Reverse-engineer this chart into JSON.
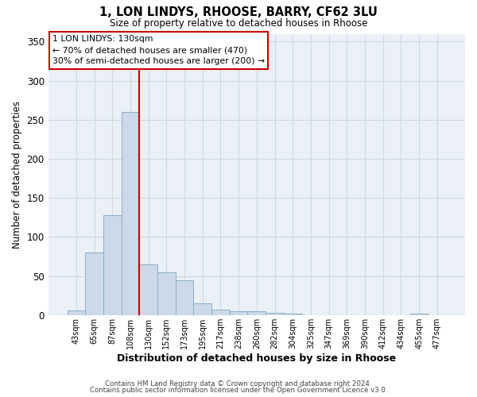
{
  "title": "1, LON LINDYS, RHOOSE, BARRY, CF62 3LU",
  "subtitle": "Size of property relative to detached houses in Rhoose",
  "xlabel": "Distribution of detached houses by size in Rhoose",
  "ylabel": "Number of detached properties",
  "footer1": "Contains HM Land Registry data © Crown copyright and database right 2024.",
  "footer2": "Contains public sector information licensed under the Open Government Licence v3.0.",
  "bar_labels": [
    "43sqm",
    "65sqm",
    "87sqm",
    "108sqm",
    "130sqm",
    "152sqm",
    "173sqm",
    "195sqm",
    "217sqm",
    "238sqm",
    "260sqm",
    "282sqm",
    "304sqm",
    "325sqm",
    "347sqm",
    "369sqm",
    "390sqm",
    "412sqm",
    "434sqm",
    "455sqm",
    "477sqm"
  ],
  "bar_values": [
    6,
    80,
    128,
    260,
    65,
    55,
    45,
    15,
    7,
    5,
    5,
    3,
    2,
    0,
    0,
    0,
    0,
    0,
    0,
    2,
    0
  ],
  "bar_color": "#ccd9e8",
  "bar_edge_color": "#8aaec8",
  "vline_color": "#cc0000",
  "annotation_title": "1 LON LINDYS: 130sqm",
  "annotation_line2": "← 70% of detached houses are smaller (470)",
  "annotation_line3": "30% of semi-detached houses are larger (200) →",
  "annotation_box_color": "#ffffff",
  "annotation_box_edge": "#cc0000",
  "ylim": [
    0,
    360
  ],
  "yticks": [
    0,
    50,
    100,
    150,
    200,
    250,
    300,
    350
  ],
  "grid_color": "#d0d8e4",
  "bg_color": "#eaf0f6"
}
